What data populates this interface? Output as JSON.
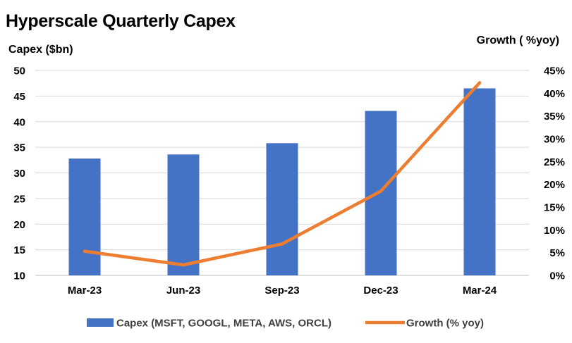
{
  "chart_data": {
    "type": "bar",
    "title": "Hyperscale Quarterly Capex",
    "ylabel": "Capex ($bn)",
    "y2label": "Growth ( %yoy)",
    "categories": [
      "Mar-23",
      "Jun-23",
      "Sep-23",
      "Dec-23",
      "Mar-24"
    ],
    "series": [
      {
        "name": "Capex (MSFT, GOOGL, META, AWS, ORCL)",
        "type": "bar",
        "axis": "left",
        "color": "#4472C4",
        "values": [
          32.8,
          33.6,
          35.8,
          42.1,
          46.5
        ]
      },
      {
        "name": "Growth (% yoy)",
        "type": "line",
        "axis": "right",
        "color": "#ED7D31",
        "values": [
          5.3,
          2.3,
          6.9,
          18.5,
          42.3
        ]
      }
    ],
    "ylim": [
      10,
      50
    ],
    "yticks": [
      10,
      15,
      20,
      25,
      30,
      35,
      40,
      45,
      50
    ],
    "y2lim": [
      0,
      45
    ],
    "y2ticks": [
      "0%",
      "5%",
      "10%",
      "15%",
      "20%",
      "25%",
      "30%",
      "35%",
      "40%",
      "45%"
    ],
    "grid": true,
    "legend": "bottom"
  }
}
